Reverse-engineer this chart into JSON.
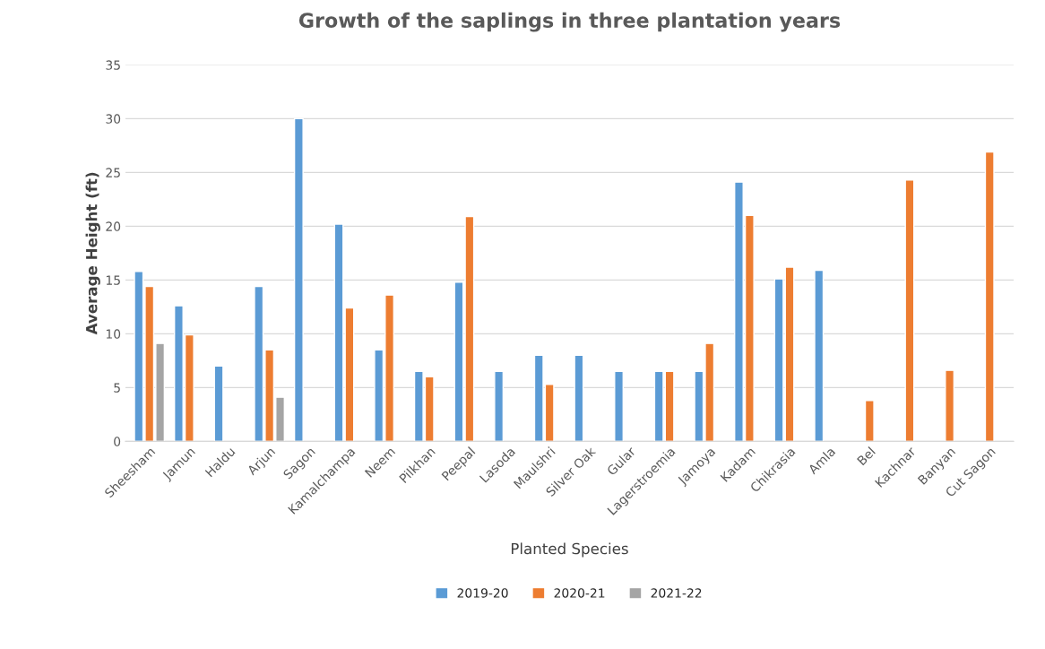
{
  "chart_data": {
    "type": "bar",
    "title": "Growth of the saplings in three plantation years",
    "xlabel": "Planted Species",
    "ylabel": "Average Height (ft)",
    "categories": [
      "Sheesham",
      "Jamun",
      "Haldu",
      "Arjun",
      "Sagon",
      "Kamalchampa",
      "Neem",
      "Pilkhan",
      "Peepal",
      "Lasoda",
      "Maulshri",
      "Silver Oak",
      "Gular",
      "Lagerstroemia",
      "Jamoya",
      "Kadam",
      "Chikrasia",
      "Amla",
      "Bel",
      "Kachnar",
      "Banyan",
      "Cut Sagon"
    ],
    "series": [
      {
        "name": "2019-20",
        "color": "#5b9bd5",
        "values": [
          15.8,
          12.6,
          7.0,
          14.4,
          30.0,
          20.2,
          8.5,
          6.5,
          14.8,
          6.5,
          8.0,
          8.0,
          6.5,
          6.5,
          6.5,
          24.1,
          15.1,
          15.9,
          null,
          null,
          null,
          null
        ]
      },
      {
        "name": "2020-21",
        "color": "#ed7d31",
        "values": [
          14.4,
          9.9,
          null,
          8.5,
          null,
          12.4,
          13.6,
          6.0,
          20.9,
          null,
          5.3,
          null,
          null,
          6.5,
          9.1,
          21.0,
          16.2,
          null,
          3.8,
          24.3,
          6.6,
          26.9
        ]
      },
      {
        "name": "2021-22",
        "color": "#a5a5a5",
        "values": [
          9.1,
          null,
          null,
          4.1,
          null,
          null,
          null,
          null,
          null,
          null,
          null,
          null,
          null,
          null,
          null,
          null,
          null,
          null,
          null,
          null,
          null,
          null
        ]
      }
    ],
    "ylim": [
      0,
      35
    ],
    "yticks": [
      0,
      5,
      10,
      15,
      20,
      25,
      30,
      35
    ],
    "grid": "y",
    "legend": "bottom"
  }
}
